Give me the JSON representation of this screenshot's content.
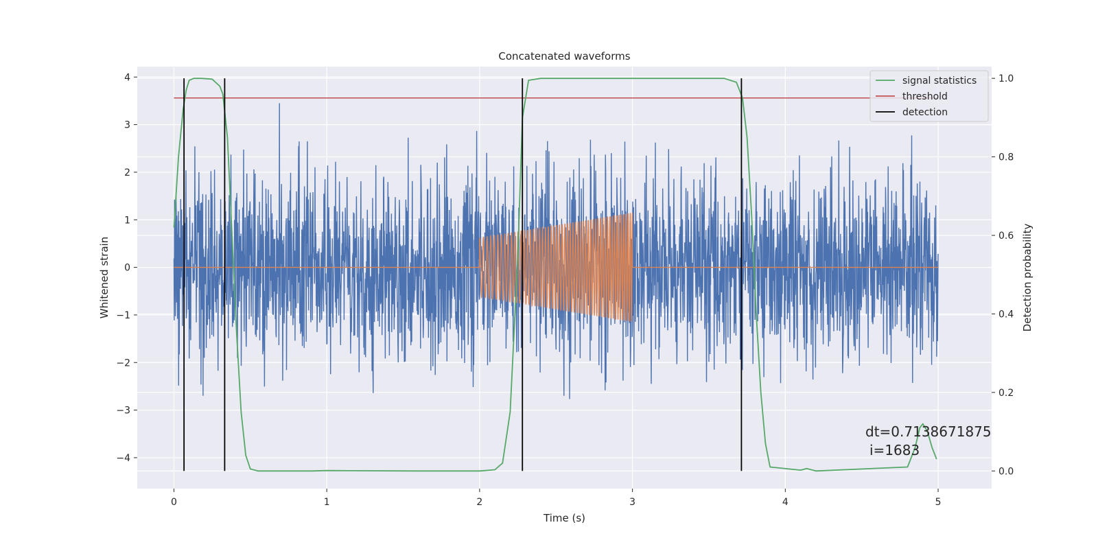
{
  "chart_data": {
    "type": "line",
    "title": "Concatenated waveforms",
    "xlabel": "Time (s)",
    "ylabel": "Whitened strain",
    "y2label": "Detection probability",
    "xlim": [
      -0.24,
      5.35
    ],
    "ylim": [
      -4.65,
      4.22
    ],
    "y2lim": [
      -0.045,
      1.03
    ],
    "xticks": [
      0,
      1,
      2,
      3,
      4,
      5
    ],
    "yticks": [
      -4,
      -3,
      -2,
      -1,
      0,
      1,
      2,
      3,
      4
    ],
    "y2ticks": [
      0.0,
      0.2,
      0.4,
      0.6,
      0.8,
      1.0
    ],
    "xtick_labels": [
      "0",
      "1",
      "2",
      "3",
      "4",
      "5"
    ],
    "ytick_labels": [
      "−4",
      "−3",
      "−2",
      "−1",
      "0",
      "1",
      "2",
      "3",
      "4"
    ],
    "y2tick_labels": [
      "0.0",
      "0.2",
      "0.4",
      "0.6",
      "0.8",
      "1.0"
    ],
    "grid": true,
    "legend_position": "top-right",
    "legend": [
      {
        "label": "signal statistics",
        "color": "#55a868"
      },
      {
        "label": "threshold",
        "color": "#c44e52"
      },
      {
        "label": "detection",
        "color": "#000000"
      }
    ],
    "series": [
      {
        "name": "",
        "axis": "left",
        "color": "#4c72b0",
        "description_type": "noise",
        "x_range": [
          0,
          5
        ],
        "amplitude_std": 0.95
      },
      {
        "name": "",
        "axis": "left",
        "color": "#dd8452",
        "description_type": "chirp",
        "x": [
          0,
          2.0,
          2.0,
          3.0,
          3.0,
          5.0
        ],
        "envelope": [
          0,
          0,
          0.62,
          1.15,
          0,
          0
        ],
        "x_range": [
          0,
          5
        ]
      },
      {
        "name": "signal statistics",
        "axis": "right",
        "color": "#55a868",
        "x": [
          0,
          0.03,
          0.06,
          0.08,
          0.1,
          0.13,
          0.18,
          0.25,
          0.3,
          0.32,
          0.35,
          0.38,
          0.41,
          0.44,
          0.47,
          0.5,
          0.55,
          0.9,
          1.0,
          1.6,
          2.0,
          2.1,
          2.15,
          2.2,
          2.25,
          2.28,
          2.32,
          2.4,
          3.6,
          3.68,
          3.72,
          3.75,
          3.78,
          3.81,
          3.84,
          3.87,
          3.9,
          4.1,
          4.14,
          4.2,
          4.8,
          4.85,
          4.88,
          4.9,
          4.93,
          4.96,
          4.99
        ],
        "y": [
          0.62,
          0.8,
          0.92,
          0.97,
          0.995,
          1.0,
          1.0,
          0.998,
          0.98,
          0.96,
          0.85,
          0.6,
          0.35,
          0.15,
          0.04,
          0.005,
          0.0,
          0.0,
          0.001,
          0.0,
          0.0,
          0.003,
          0.02,
          0.15,
          0.55,
          0.9,
          0.995,
          1.0,
          1.0,
          0.99,
          0.95,
          0.85,
          0.65,
          0.4,
          0.2,
          0.07,
          0.01,
          0.002,
          0.006,
          0.0,
          0.01,
          0.06,
          0.11,
          0.12,
          0.1,
          0.06,
          0.03
        ]
      },
      {
        "name": "threshold",
        "axis": "right",
        "color": "#c44e52",
        "x": [
          0,
          5
        ],
        "y": [
          0.95,
          0.95
        ]
      },
      {
        "name": "detection",
        "axis": "right",
        "color": "#000000",
        "type": "vlines",
        "x": [
          0.066,
          0.332,
          2.28,
          3.713
        ],
        "ymin": 0.0,
        "ymax": 1.0
      }
    ],
    "annotation": {
      "line1": "dt=0.7138671875",
      "line2": "i=1683",
      "x": 4.55,
      "y2": 0.1
    }
  }
}
